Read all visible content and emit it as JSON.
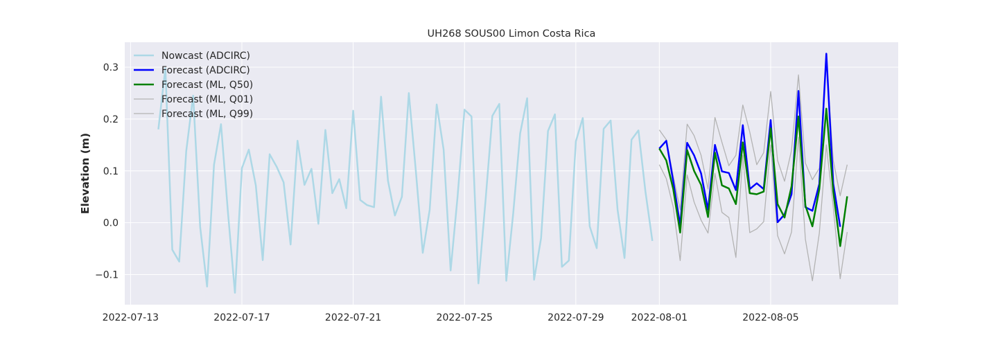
{
  "chart_data": {
    "type": "line",
    "title": "UH268 SOUS00 Limon Costa Rica",
    "xlabel": "",
    "ylabel": "Elevation (m)",
    "x_type": "date",
    "xlim": [
      "2022-07-12T19:00",
      "2022-08-09T14:00"
    ],
    "ylim": [
      -0.158,
      0.348
    ],
    "x_ticks": [
      "2022-07-13",
      "2022-07-17",
      "2022-07-21",
      "2022-07-25",
      "2022-07-29",
      "2022-08-01",
      "2022-08-05"
    ],
    "y_ticks": [
      -0.1,
      0.0,
      0.1,
      0.2,
      0.3
    ],
    "y_tick_labels": [
      "−0.1",
      "0.0",
      "0.1",
      "0.2",
      "0.3"
    ],
    "grid": true,
    "legend_position": "top-left",
    "background": "#eaeaf2",
    "series": [
      {
        "name": "Nowcast (ADCIRC)",
        "color": "#add8e6",
        "width": 2.5,
        "points": [
          [
            "2022-07-14T00:00",
            0.18
          ],
          [
            "2022-07-14T06:00",
            0.298
          ],
          [
            "2022-07-14T12:00",
            -0.052
          ],
          [
            "2022-07-14T18:00",
            -0.075
          ],
          [
            "2022-07-15T00:00",
            0.138
          ],
          [
            "2022-07-15T06:00",
            0.245
          ],
          [
            "2022-07-15T12:00",
            -0.008
          ],
          [
            "2022-07-15T18:00",
            -0.123
          ],
          [
            "2022-07-16T00:00",
            0.112
          ],
          [
            "2022-07-16T06:00",
            0.19
          ],
          [
            "2022-07-16T12:00",
            0.02
          ],
          [
            "2022-07-16T18:00",
            -0.135
          ],
          [
            "2022-07-17T00:00",
            0.105
          ],
          [
            "2022-07-17T06:00",
            0.141
          ],
          [
            "2022-07-17T12:00",
            0.072
          ],
          [
            "2022-07-17T18:00",
            -0.072
          ],
          [
            "2022-07-18T00:00",
            0.132
          ],
          [
            "2022-07-18T06:00",
            0.108
          ],
          [
            "2022-07-18T12:00",
            0.078
          ],
          [
            "2022-07-18T18:00",
            -0.042
          ],
          [
            "2022-07-19T00:00",
            0.158
          ],
          [
            "2022-07-19T06:00",
            0.073
          ],
          [
            "2022-07-19T12:00",
            0.104
          ],
          [
            "2022-07-19T18:00",
            -0.002
          ],
          [
            "2022-07-20T00:00",
            0.179
          ],
          [
            "2022-07-20T06:00",
            0.057
          ],
          [
            "2022-07-20T12:00",
            0.084
          ],
          [
            "2022-07-20T18:00",
            0.028
          ],
          [
            "2022-07-21T00:00",
            0.216
          ],
          [
            "2022-07-21T06:00",
            0.044
          ],
          [
            "2022-07-21T12:00",
            0.034
          ],
          [
            "2022-07-21T18:00",
            0.03
          ],
          [
            "2022-07-22T00:00",
            0.243
          ],
          [
            "2022-07-22T06:00",
            0.081
          ],
          [
            "2022-07-22T12:00",
            0.014
          ],
          [
            "2022-07-22T18:00",
            0.05
          ],
          [
            "2022-07-23T00:00",
            0.25
          ],
          [
            "2022-07-23T06:00",
            0.1
          ],
          [
            "2022-07-23T12:00",
            -0.058
          ],
          [
            "2022-07-23T18:00",
            0.025
          ],
          [
            "2022-07-24T00:00",
            0.228
          ],
          [
            "2022-07-24T06:00",
            0.141
          ],
          [
            "2022-07-24T12:00",
            -0.092
          ],
          [
            "2022-07-24T18:00",
            0.05
          ],
          [
            "2022-07-25T00:00",
            0.218
          ],
          [
            "2022-07-25T06:00",
            0.205
          ],
          [
            "2022-07-25T12:00",
            -0.117
          ],
          [
            "2022-07-25T18:00",
            0.04
          ],
          [
            "2022-07-26T00:00",
            0.206
          ],
          [
            "2022-07-26T06:00",
            0.229
          ],
          [
            "2022-07-26T12:00",
            -0.112
          ],
          [
            "2022-07-26T18:00",
            0.018
          ],
          [
            "2022-07-27T00:00",
            0.172
          ],
          [
            "2022-07-27T06:00",
            0.24
          ],
          [
            "2022-07-27T12:00",
            -0.11
          ],
          [
            "2022-07-27T18:00",
            -0.03
          ],
          [
            "2022-07-28T00:00",
            0.177
          ],
          [
            "2022-07-28T06:00",
            0.209
          ],
          [
            "2022-07-28T12:00",
            -0.085
          ],
          [
            "2022-07-28T18:00",
            -0.073
          ],
          [
            "2022-07-29T00:00",
            0.157
          ],
          [
            "2022-07-29T06:00",
            0.202
          ],
          [
            "2022-07-29T12:00",
            -0.007
          ],
          [
            "2022-07-29T18:00",
            -0.049
          ],
          [
            "2022-07-30T00:00",
            0.181
          ],
          [
            "2022-07-30T06:00",
            0.197
          ],
          [
            "2022-07-30T12:00",
            0.025
          ],
          [
            "2022-07-30T18:00",
            -0.068
          ],
          [
            "2022-07-31T00:00",
            0.16
          ],
          [
            "2022-07-31T06:00",
            0.178
          ],
          [
            "2022-07-31T12:00",
            0.06
          ],
          [
            "2022-07-31T18:00",
            -0.035
          ]
        ]
      },
      {
        "name": "Forecast (ML, Q01)",
        "color": "#b3b3b3",
        "width": 1.3,
        "points": [
          [
            "2022-08-01T00:00",
            0.112
          ],
          [
            "2022-08-01T06:00",
            0.085
          ],
          [
            "2022-08-01T12:00",
            0.03
          ],
          [
            "2022-08-01T18:00",
            -0.073
          ],
          [
            "2022-08-02T00:00",
            0.092
          ],
          [
            "2022-08-02T06:00",
            0.04
          ],
          [
            "2022-08-02T12:00",
            0.005
          ],
          [
            "2022-08-02T18:00",
            -0.02
          ],
          [
            "2022-08-03T00:00",
            0.095
          ],
          [
            "2022-08-03T06:00",
            0.02
          ],
          [
            "2022-08-03T12:00",
            0.01
          ],
          [
            "2022-08-03T18:00",
            -0.067
          ],
          [
            "2022-08-04T00:00",
            0.13
          ],
          [
            "2022-08-04T06:00",
            -0.019
          ],
          [
            "2022-08-04T12:00",
            -0.012
          ],
          [
            "2022-08-04T18:00",
            0.002
          ],
          [
            "2022-08-05T00:00",
            0.15
          ],
          [
            "2022-08-05T06:00",
            -0.025
          ],
          [
            "2022-08-05T12:00",
            -0.06
          ],
          [
            "2022-08-05T18:00",
            -0.018
          ],
          [
            "2022-08-06T00:00",
            0.165
          ],
          [
            "2022-08-06T06:00",
            -0.032
          ],
          [
            "2022-08-06T12:00",
            -0.112
          ],
          [
            "2022-08-06T18:00",
            -0.02
          ],
          [
            "2022-08-07T00:00",
            0.15
          ],
          [
            "2022-08-07T06:00",
            0.03
          ],
          [
            "2022-08-07T12:00",
            -0.108
          ],
          [
            "2022-08-07T18:00",
            -0.018
          ]
        ]
      },
      {
        "name": "Forecast (ML, Q99)",
        "color": "#b3b3b3",
        "width": 1.3,
        "points": [
          [
            "2022-08-01T00:00",
            0.179
          ],
          [
            "2022-08-01T06:00",
            0.16
          ],
          [
            "2022-08-01T12:00",
            0.09
          ],
          [
            "2022-08-01T18:00",
            0.025
          ],
          [
            "2022-08-02T00:00",
            0.19
          ],
          [
            "2022-08-02T06:00",
            0.168
          ],
          [
            "2022-08-02T12:00",
            0.13
          ],
          [
            "2022-08-02T18:00",
            0.065
          ],
          [
            "2022-08-03T00:00",
            0.203
          ],
          [
            "2022-08-03T06:00",
            0.155
          ],
          [
            "2022-08-03T12:00",
            0.11
          ],
          [
            "2022-08-03T18:00",
            0.13
          ],
          [
            "2022-08-04T00:00",
            0.227
          ],
          [
            "2022-08-04T06:00",
            0.175
          ],
          [
            "2022-08-04T12:00",
            0.112
          ],
          [
            "2022-08-04T18:00",
            0.135
          ],
          [
            "2022-08-05T00:00",
            0.253
          ],
          [
            "2022-08-05T06:00",
            0.12
          ],
          [
            "2022-08-05T12:00",
            0.08
          ],
          [
            "2022-08-05T18:00",
            0.14
          ],
          [
            "2022-08-06T00:00",
            0.285
          ],
          [
            "2022-08-06T06:00",
            0.115
          ],
          [
            "2022-08-06T12:00",
            0.083
          ],
          [
            "2022-08-06T18:00",
            0.105
          ],
          [
            "2022-08-07T00:00",
            0.315
          ],
          [
            "2022-08-07T06:00",
            0.12
          ],
          [
            "2022-08-07T12:00",
            0.052
          ],
          [
            "2022-08-07T18:00",
            0.112
          ]
        ]
      },
      {
        "name": "Forecast (ADCIRC)",
        "color": "#0000ff",
        "width": 2.5,
        "points": [
          [
            "2022-08-01T00:00",
            0.143
          ],
          [
            "2022-08-01T06:00",
            0.158
          ],
          [
            "2022-08-01T12:00",
            0.08
          ],
          [
            "2022-08-01T18:00",
            -0.005
          ],
          [
            "2022-08-02T00:00",
            0.154
          ],
          [
            "2022-08-02T06:00",
            0.13
          ],
          [
            "2022-08-02T12:00",
            0.095
          ],
          [
            "2022-08-02T18:00",
            0.025
          ],
          [
            "2022-08-03T00:00",
            0.15
          ],
          [
            "2022-08-03T06:00",
            0.099
          ],
          [
            "2022-08-03T12:00",
            0.096
          ],
          [
            "2022-08-03T18:00",
            0.063
          ],
          [
            "2022-08-04T00:00",
            0.188
          ],
          [
            "2022-08-04T06:00",
            0.065
          ],
          [
            "2022-08-04T12:00",
            0.076
          ],
          [
            "2022-08-04T18:00",
            0.065
          ],
          [
            "2022-08-05T00:00",
            0.198
          ],
          [
            "2022-08-05T06:00",
            0.001
          ],
          [
            "2022-08-05T12:00",
            0.016
          ],
          [
            "2022-08-05T18:00",
            0.055
          ],
          [
            "2022-08-06T00:00",
            0.254
          ],
          [
            "2022-08-06T06:00",
            0.03
          ],
          [
            "2022-08-06T12:00",
            0.023
          ],
          [
            "2022-08-06T18:00",
            0.075
          ],
          [
            "2022-08-07T00:00",
            0.326
          ],
          [
            "2022-08-07T06:00",
            0.075
          ],
          [
            "2022-08-07T12:00",
            -0.008
          ]
        ]
      },
      {
        "name": "Forecast (ML, Q50)",
        "color": "#008000",
        "width": 2.5,
        "points": [
          [
            "2022-08-01T00:00",
            0.143
          ],
          [
            "2022-08-01T06:00",
            0.12
          ],
          [
            "2022-08-01T12:00",
            0.065
          ],
          [
            "2022-08-01T18:00",
            -0.019
          ],
          [
            "2022-08-02T00:00",
            0.14
          ],
          [
            "2022-08-02T06:00",
            0.1
          ],
          [
            "2022-08-02T12:00",
            0.073
          ],
          [
            "2022-08-02T18:00",
            0.011
          ],
          [
            "2022-08-03T00:00",
            0.135
          ],
          [
            "2022-08-03T06:00",
            0.072
          ],
          [
            "2022-08-03T12:00",
            0.066
          ],
          [
            "2022-08-03T18:00",
            0.036
          ],
          [
            "2022-08-04T00:00",
            0.155
          ],
          [
            "2022-08-04T06:00",
            0.057
          ],
          [
            "2022-08-04T12:00",
            0.055
          ],
          [
            "2022-08-04T18:00",
            0.06
          ],
          [
            "2022-08-05T00:00",
            0.182
          ],
          [
            "2022-08-05T06:00",
            0.036
          ],
          [
            "2022-08-05T12:00",
            0.01
          ],
          [
            "2022-08-05T18:00",
            0.07
          ],
          [
            "2022-08-06T00:00",
            0.205
          ],
          [
            "2022-08-06T06:00",
            0.033
          ],
          [
            "2022-08-06T12:00",
            -0.007
          ],
          [
            "2022-08-06T18:00",
            0.065
          ],
          [
            "2022-08-07T00:00",
            0.22
          ],
          [
            "2022-08-07T06:00",
            0.06
          ],
          [
            "2022-08-07T12:00",
            -0.045
          ],
          [
            "2022-08-07T18:00",
            0.051
          ]
        ]
      }
    ],
    "legend": [
      {
        "label": "Nowcast (ADCIRC)",
        "color": "#add8e6",
        "width": 2.5
      },
      {
        "label": "Forecast (ADCIRC)",
        "color": "#0000ff",
        "width": 2.5
      },
      {
        "label": "Forecast (ML, Q50)",
        "color": "#008000",
        "width": 2.5
      },
      {
        "label": "Forecast (ML, Q01)",
        "color": "#b3b3b3",
        "width": 1.3
      },
      {
        "label": "Forecast (ML, Q99)",
        "color": "#b3b3b3",
        "width": 1.3
      }
    ]
  }
}
